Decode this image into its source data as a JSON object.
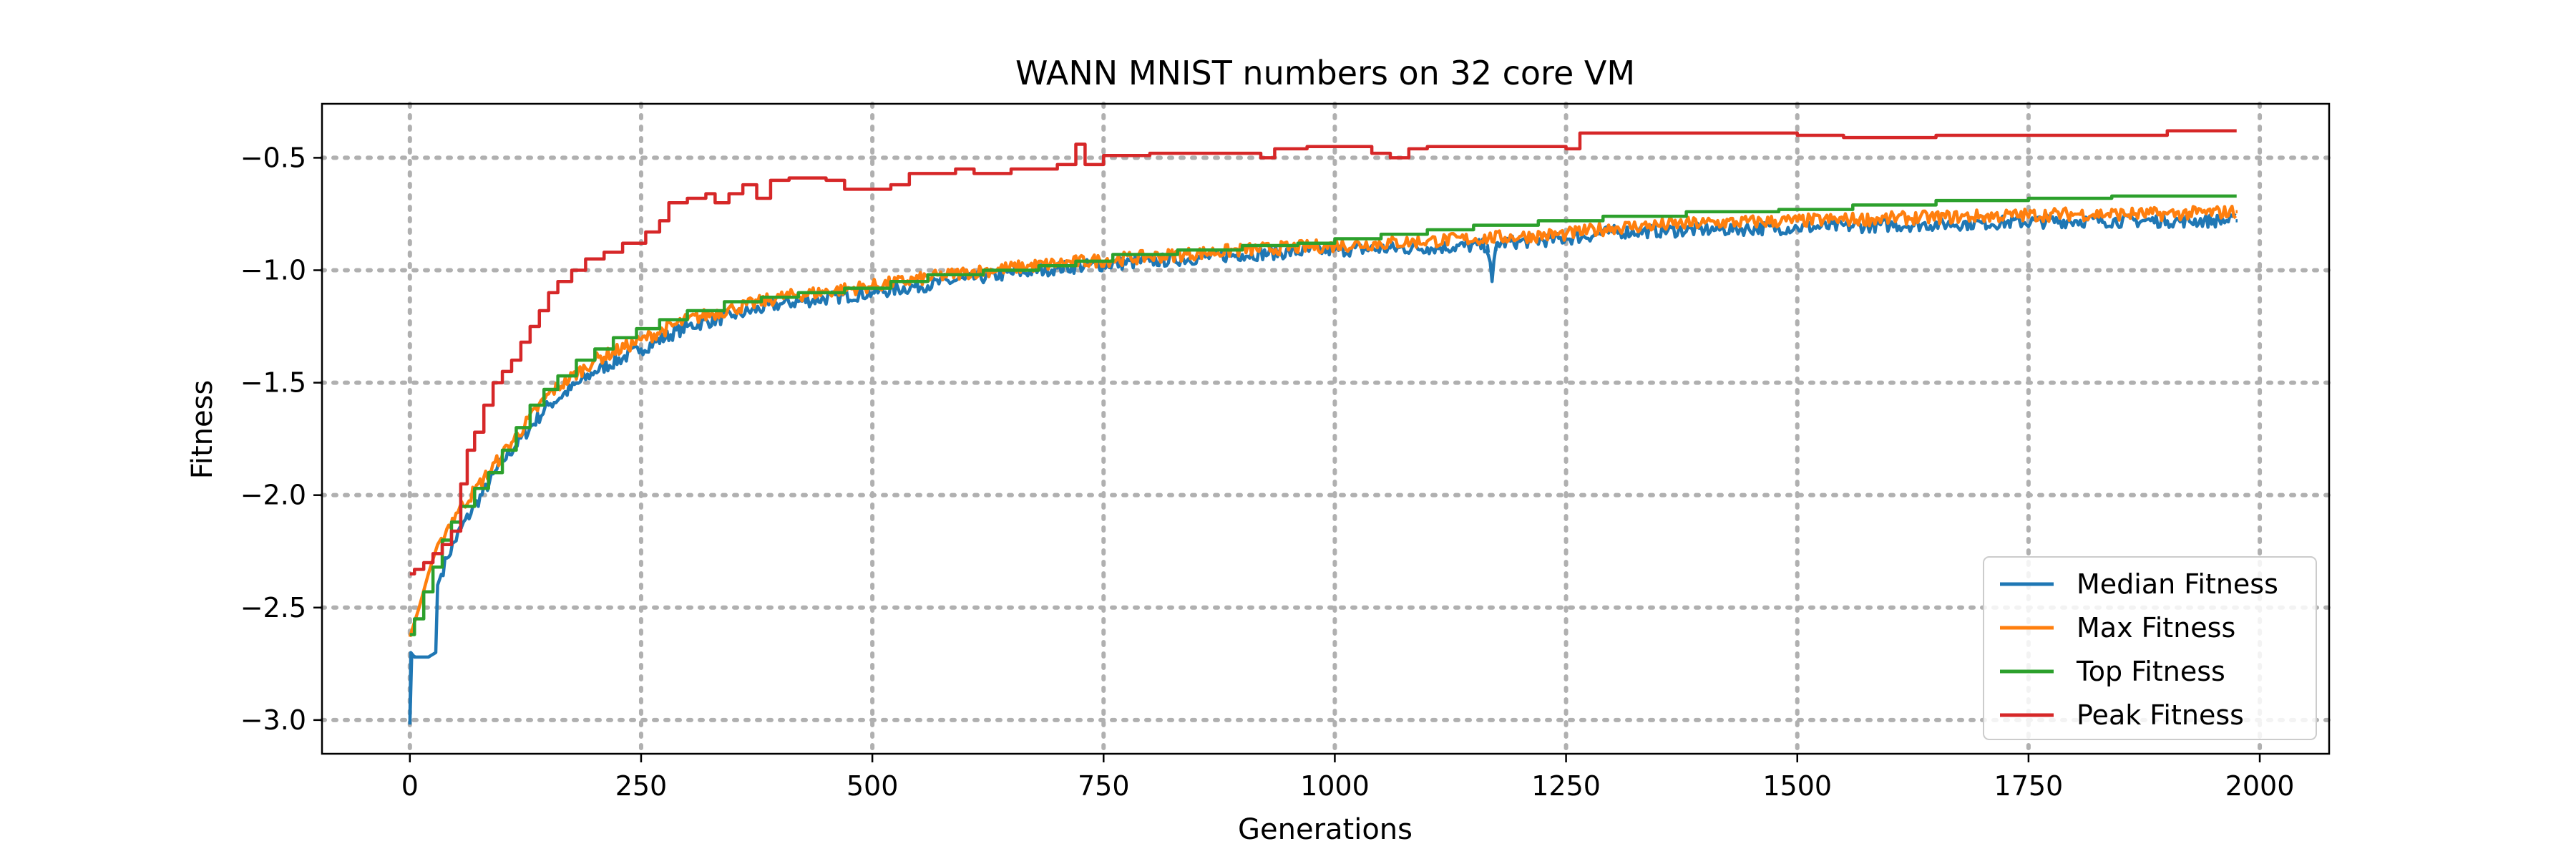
{
  "chart_data": {
    "type": "line",
    "title": "WANN MNIST numbers on 32 core VM",
    "xlabel": "Generations",
    "ylabel": "Fitness",
    "xlim": [
      -95,
      2075
    ],
    "ylim": [
      -3.15,
      -0.26
    ],
    "xticks": [
      0,
      250,
      500,
      750,
      1000,
      1250,
      1500,
      1750,
      2000
    ],
    "xtick_labels": [
      "0",
      "250",
      "500",
      "750",
      "1000",
      "1250",
      "1500",
      "1750",
      "2000"
    ],
    "yticks": [
      -3.0,
      -2.5,
      -2.0,
      -1.5,
      -1.0,
      -0.5
    ],
    "ytick_labels": [
      "−3.0",
      "−2.5",
      "−2.0",
      "−1.5",
      "−1.0",
      "−0.5"
    ],
    "grid": true,
    "legend_position": "lower-right",
    "series": [
      {
        "name": "Median Fitness",
        "color": "#1f77b4",
        "noise": 0.03,
        "points": [
          [
            0,
            -3.02
          ],
          [
            1,
            -2.7
          ],
          [
            5,
            -2.72
          ],
          [
            20,
            -2.72
          ],
          [
            28,
            -2.7
          ],
          [
            30,
            -2.4
          ],
          [
            40,
            -2.28
          ],
          [
            55,
            -2.15
          ],
          [
            70,
            -2.05
          ],
          [
            100,
            -1.85
          ],
          [
            150,
            -1.6
          ],
          [
            200,
            -1.45
          ],
          [
            250,
            -1.35
          ],
          [
            300,
            -1.25
          ],
          [
            350,
            -1.2
          ],
          [
            400,
            -1.15
          ],
          [
            500,
            -1.1
          ],
          [
            600,
            -1.04
          ],
          [
            700,
            -0.99
          ],
          [
            800,
            -0.96
          ],
          [
            900,
            -0.93
          ],
          [
            1000,
            -0.91
          ],
          [
            1100,
            -0.9
          ],
          [
            1165,
            -0.89
          ],
          [
            1170,
            -1.05
          ],
          [
            1175,
            -0.88
          ],
          [
            1250,
            -0.86
          ],
          [
            1300,
            -0.83
          ],
          [
            1400,
            -0.82
          ],
          [
            1500,
            -0.81
          ],
          [
            1600,
            -0.8
          ],
          [
            1700,
            -0.79
          ],
          [
            1800,
            -0.78
          ],
          [
            1900,
            -0.78
          ],
          [
            1975,
            -0.78
          ]
        ]
      },
      {
        "name": "Max Fitness",
        "color": "#ff7f0e",
        "noise": 0.03,
        "points": [
          [
            0,
            -2.63
          ],
          [
            10,
            -2.5
          ],
          [
            20,
            -2.35
          ],
          [
            30,
            -2.22
          ],
          [
            50,
            -2.08
          ],
          [
            70,
            -1.98
          ],
          [
            100,
            -1.82
          ],
          [
            150,
            -1.55
          ],
          [
            200,
            -1.4
          ],
          [
            250,
            -1.31
          ],
          [
            300,
            -1.22
          ],
          [
            350,
            -1.17
          ],
          [
            400,
            -1.12
          ],
          [
            500,
            -1.07
          ],
          [
            600,
            -1.01
          ],
          [
            700,
            -0.97
          ],
          [
            800,
            -0.94
          ],
          [
            900,
            -0.91
          ],
          [
            1000,
            -0.89
          ],
          [
            1100,
            -0.87
          ],
          [
            1200,
            -0.85
          ],
          [
            1250,
            -0.84
          ],
          [
            1300,
            -0.81
          ],
          [
            1400,
            -0.79
          ],
          [
            1500,
            -0.78
          ],
          [
            1600,
            -0.77
          ],
          [
            1700,
            -0.76
          ],
          [
            1800,
            -0.75
          ],
          [
            1900,
            -0.75
          ],
          [
            1975,
            -0.74
          ]
        ]
      },
      {
        "name": "Top Fitness",
        "color": "#2ca02c",
        "step": true,
        "points": [
          [
            0,
            -2.62
          ],
          [
            5,
            -2.55
          ],
          [
            15,
            -2.43
          ],
          [
            25,
            -2.32
          ],
          [
            35,
            -2.2
          ],
          [
            45,
            -2.12
          ],
          [
            55,
            -2.05
          ],
          [
            70,
            -1.97
          ],
          [
            85,
            -1.9
          ],
          [
            100,
            -1.8
          ],
          [
            115,
            -1.7
          ],
          [
            130,
            -1.6
          ],
          [
            145,
            -1.53
          ],
          [
            160,
            -1.47
          ],
          [
            180,
            -1.4
          ],
          [
            200,
            -1.35
          ],
          [
            220,
            -1.3
          ],
          [
            245,
            -1.26
          ],
          [
            270,
            -1.22
          ],
          [
            300,
            -1.18
          ],
          [
            340,
            -1.14
          ],
          [
            380,
            -1.12
          ],
          [
            420,
            -1.1
          ],
          [
            470,
            -1.08
          ],
          [
            520,
            -1.05
          ],
          [
            560,
            -1.02
          ],
          [
            620,
            -1.0
          ],
          [
            680,
            -0.98
          ],
          [
            720,
            -0.96
          ],
          [
            760,
            -0.93
          ],
          [
            830,
            -0.91
          ],
          [
            900,
            -0.89
          ],
          [
            960,
            -0.88
          ],
          [
            1000,
            -0.86
          ],
          [
            1050,
            -0.84
          ],
          [
            1100,
            -0.82
          ],
          [
            1150,
            -0.8
          ],
          [
            1220,
            -0.78
          ],
          [
            1290,
            -0.76
          ],
          [
            1380,
            -0.74
          ],
          [
            1480,
            -0.73
          ],
          [
            1560,
            -0.71
          ],
          [
            1650,
            -0.69
          ],
          [
            1750,
            -0.68
          ],
          [
            1840,
            -0.67
          ],
          [
            1975,
            -0.67
          ]
        ]
      },
      {
        "name": "Peak Fitness",
        "color": "#d62728",
        "step": true,
        "points": [
          [
            0,
            -2.35
          ],
          [
            5,
            -2.33
          ],
          [
            15,
            -2.3
          ],
          [
            25,
            -2.26
          ],
          [
            35,
            -2.22
          ],
          [
            45,
            -2.16
          ],
          [
            55,
            -1.95
          ],
          [
            62,
            -1.8
          ],
          [
            70,
            -1.72
          ],
          [
            80,
            -1.6
          ],
          [
            90,
            -1.5
          ],
          [
            100,
            -1.45
          ],
          [
            110,
            -1.4
          ],
          [
            120,
            -1.32
          ],
          [
            130,
            -1.25
          ],
          [
            140,
            -1.18
          ],
          [
            150,
            -1.1
          ],
          [
            160,
            -1.05
          ],
          [
            175,
            -1.0
          ],
          [
            190,
            -0.95
          ],
          [
            210,
            -0.92
          ],
          [
            230,
            -0.88
          ],
          [
            255,
            -0.83
          ],
          [
            270,
            -0.78
          ],
          [
            280,
            -0.7
          ],
          [
            300,
            -0.68
          ],
          [
            320,
            -0.66
          ],
          [
            330,
            -0.7
          ],
          [
            345,
            -0.66
          ],
          [
            360,
            -0.62
          ],
          [
            375,
            -0.68
          ],
          [
            390,
            -0.6
          ],
          [
            410,
            -0.59
          ],
          [
            450,
            -0.6
          ],
          [
            470,
            -0.64
          ],
          [
            520,
            -0.62
          ],
          [
            540,
            -0.57
          ],
          [
            590,
            -0.55
          ],
          [
            610,
            -0.57
          ],
          [
            650,
            -0.55
          ],
          [
            700,
            -0.53
          ],
          [
            720,
            -0.44
          ],
          [
            730,
            -0.53
          ],
          [
            750,
            -0.49
          ],
          [
            800,
            -0.48
          ],
          [
            920,
            -0.5
          ],
          [
            935,
            -0.46
          ],
          [
            970,
            -0.45
          ],
          [
            1040,
            -0.48
          ],
          [
            1060,
            -0.5
          ],
          [
            1080,
            -0.46
          ],
          [
            1100,
            -0.45
          ],
          [
            1250,
            -0.46
          ],
          [
            1265,
            -0.39
          ],
          [
            1300,
            -0.39
          ],
          [
            1500,
            -0.4
          ],
          [
            1550,
            -0.41
          ],
          [
            1650,
            -0.4
          ],
          [
            1900,
            -0.38
          ],
          [
            1975,
            -0.38
          ]
        ]
      }
    ]
  }
}
